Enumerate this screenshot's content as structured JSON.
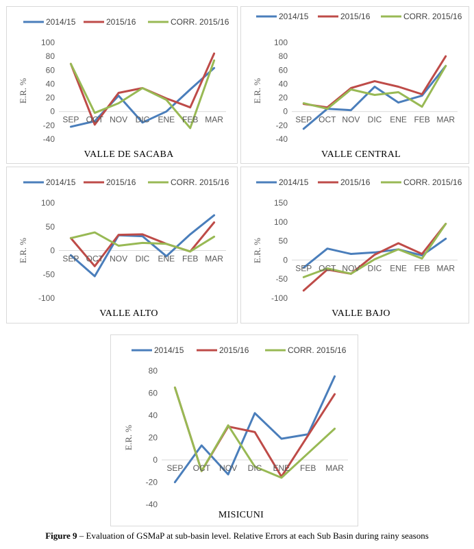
{
  "legend": [
    "2014/15",
    "2015/16",
    "CORR. 2015/16"
  ],
  "colors": {
    "s2014": "#4a7ebb",
    "s2015": "#be4b48",
    "corr": "#98b954"
  },
  "caption": {
    "label": "Figure 9",
    "text": " – Evaluation of GSMaP at sub-basin level. Relative Errors at each Sub Basin during rainy seasons"
  },
  "chart_data": [
    {
      "type": "line",
      "title": "VALLE DE SACABA",
      "ylabel": "E.R. %",
      "categories": [
        "SEP",
        "OCT",
        "NOV",
        "DIC",
        "ENE",
        "FEB",
        "MAR"
      ],
      "ylim": [
        -40,
        100
      ],
      "yticks": [
        -40,
        -20,
        0,
        20,
        40,
        60,
        80,
        100
      ],
      "series": [
        {
          "name": "2014/15",
          "values": [
            -22,
            -14,
            23,
            -16,
            0,
            32,
            63
          ]
        },
        {
          "name": "2015/16",
          "values": [
            69,
            -19,
            27,
            34,
            19,
            6,
            84
          ]
        },
        {
          "name": "CORR. 2015/16",
          "values": [
            69,
            -2,
            12,
            34,
            17,
            -24,
            74
          ]
        }
      ]
    },
    {
      "type": "line",
      "title": "VALLE CENTRAL",
      "ylabel": "E.R. %",
      "categories": [
        "SEP",
        "OCT",
        "NOV",
        "DIC",
        "ENE",
        "FEB",
        "MAR"
      ],
      "ylim": [
        -40,
        100
      ],
      "yticks": [
        -40,
        -20,
        0,
        20,
        40,
        60,
        80,
        100
      ],
      "series": [
        {
          "name": "2014/15",
          "values": [
            -25,
            4,
            2,
            36,
            13,
            23,
            66
          ]
        },
        {
          "name": "2015/16",
          "values": [
            11,
            6,
            34,
            44,
            36,
            25,
            80
          ]
        },
        {
          "name": "CORR. 2015/16",
          "values": [
            12,
            4,
            32,
            24,
            28,
            7,
            66
          ]
        }
      ]
    },
    {
      "type": "line",
      "title": "VALLE ALTO",
      "ylabel": "E.R. %",
      "categories": [
        "SEP",
        "OCT",
        "NOV",
        "DIC",
        "ENE",
        "FEB",
        "MAR"
      ],
      "ylim": [
        -100,
        100
      ],
      "yticks": [
        -100,
        -50,
        0,
        50,
        100
      ],
      "series": [
        {
          "name": "2014/15",
          "values": [
            -10,
            -54,
            32,
            30,
            -12,
            34,
            74
          ]
        },
        {
          "name": "2015/16",
          "values": [
            26,
            -33,
            33,
            34,
            14,
            -2,
            59
          ]
        },
        {
          "name": "CORR. 2015/16",
          "values": [
            26,
            38,
            10,
            16,
            14,
            -2,
            29
          ]
        }
      ]
    },
    {
      "type": "line",
      "title": "VALLE BAJO",
      "ylabel": "E.R. %",
      "categories": [
        "SEP",
        "OCT",
        "NOV",
        "DIC",
        "ENE",
        "FEB",
        "MAR"
      ],
      "ylim": [
        -100,
        150
      ],
      "yticks": [
        -100,
        -50,
        0,
        50,
        100,
        150
      ],
      "series": [
        {
          "name": "2014/15",
          "values": [
            -20,
            30,
            16,
            20,
            28,
            12,
            56
          ]
        },
        {
          "name": "2015/16",
          "values": [
            -80,
            -25,
            -36,
            14,
            44,
            16,
            95
          ]
        },
        {
          "name": "CORR. 2015/16",
          "values": [
            -45,
            -22,
            -36,
            2,
            28,
            4,
            95
          ]
        }
      ]
    },
    {
      "type": "line",
      "title": "MISICUNI",
      "ylabel": "E.R. %",
      "categories": [
        "SEP",
        "OCT",
        "NOV",
        "DIC",
        "ENE",
        "FEB",
        "MAR"
      ],
      "ylim": [
        -40,
        80
      ],
      "yticks": [
        -40,
        -20,
        0,
        20,
        40,
        60,
        80
      ],
      "series": [
        {
          "name": "2014/15",
          "values": [
            -20,
            13,
            -13,
            42,
            19,
            23,
            75
          ]
        },
        {
          "name": "2015/16",
          "values": [
            65,
            -10,
            30,
            25,
            -15,
            22,
            59
          ]
        },
        {
          "name": "CORR. 2015/16",
          "values": [
            65,
            -10,
            31,
            -6,
            -16,
            6,
            28
          ]
        }
      ]
    }
  ]
}
